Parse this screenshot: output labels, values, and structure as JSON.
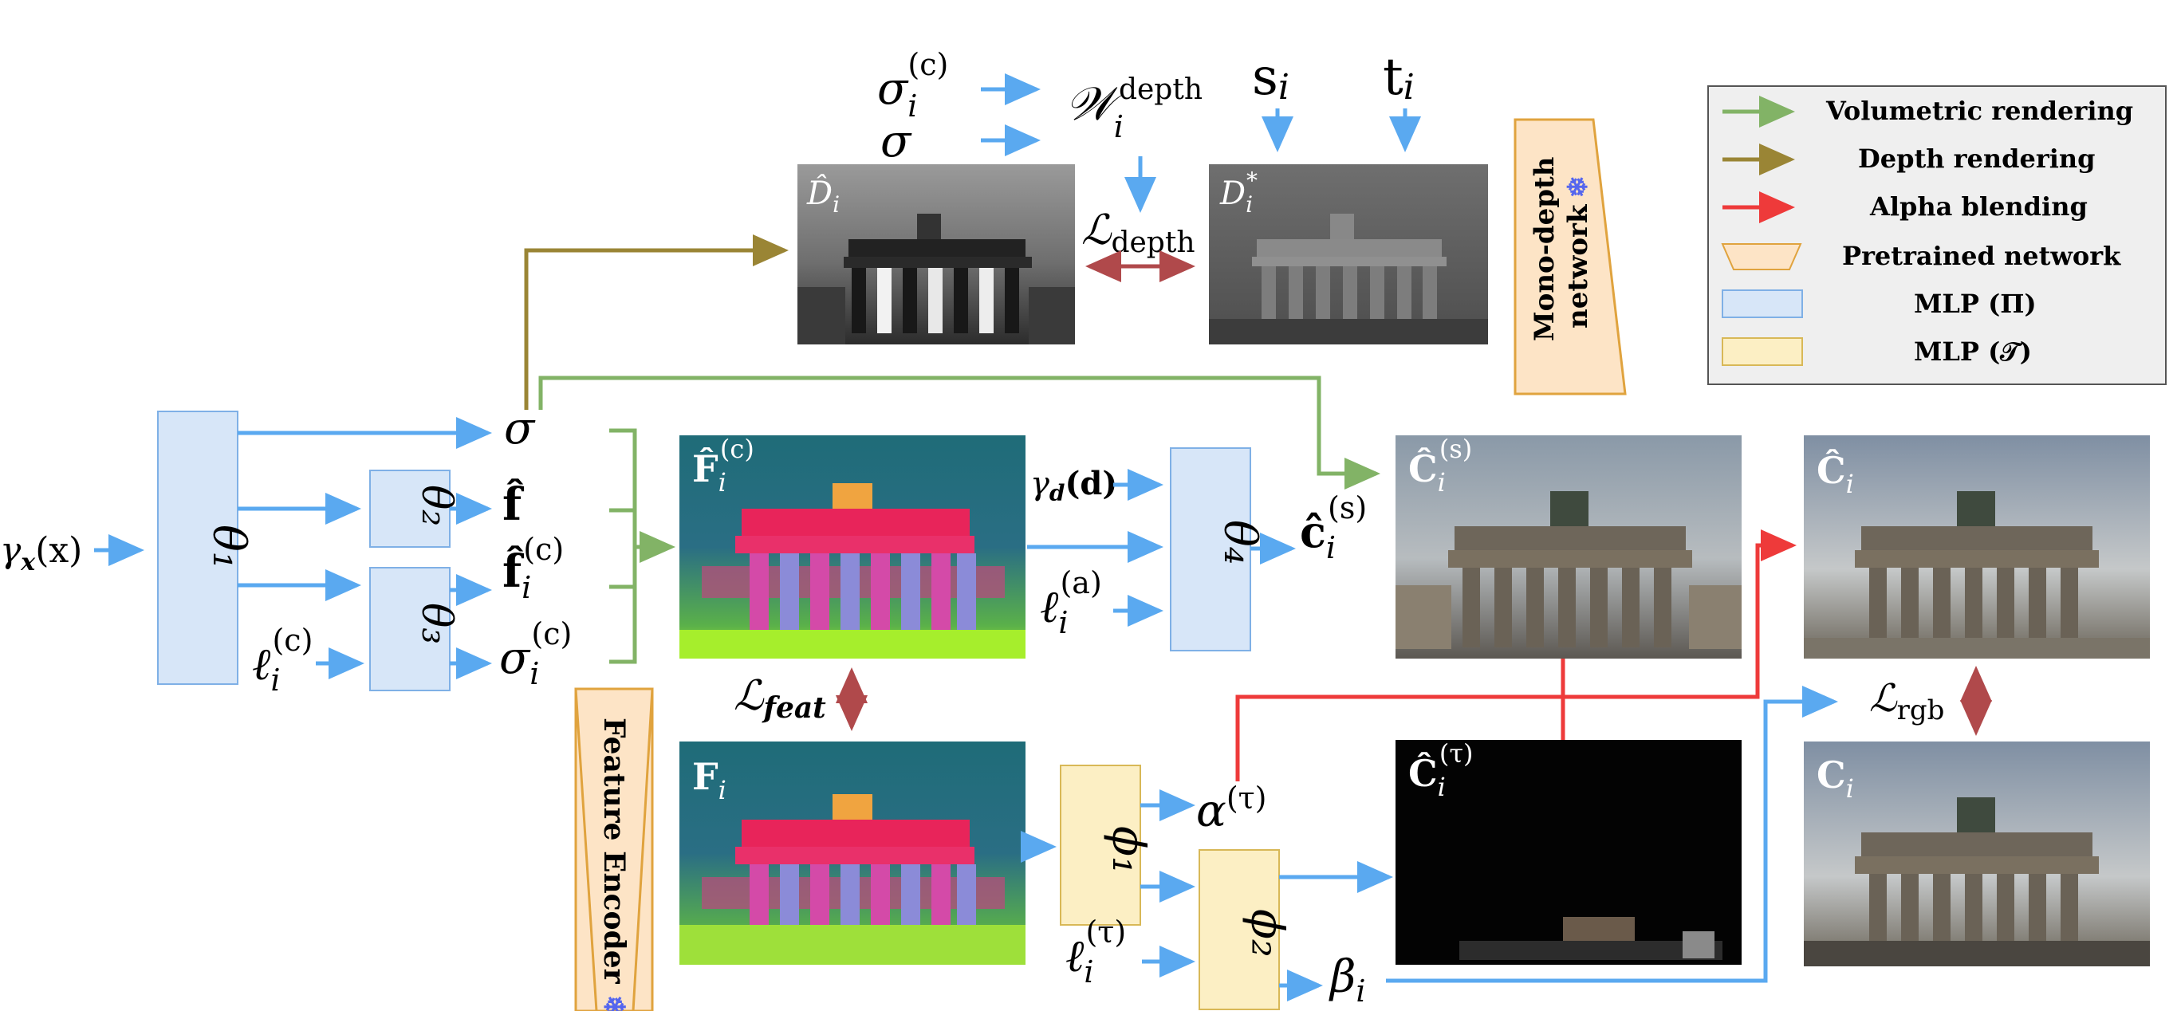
{
  "colors": {
    "volumetric": "#82b366",
    "depth": "#9a8535",
    "alpha": "#ee3a3a",
    "blue_arrow": "#5aa9f0",
    "loss_arrow": "#b0494b",
    "mlp_pi_fill": "#d7e6f8",
    "mlp_pi_stroke": "#7fb0e6",
    "mlp_t_fill": "#fcefc4",
    "mlp_t_stroke": "#d8b857",
    "pretrained_fill": "#fde4c6",
    "pretrained_stroke": "#e0a33e"
  },
  "legend": {
    "items": [
      {
        "label": "Volumetric rendering",
        "kind": "arrow",
        "color": "#82b366"
      },
      {
        "label": "Depth rendering",
        "kind": "arrow",
        "color": "#9a8535"
      },
      {
        "label": "Alpha blending",
        "kind": "arrow",
        "color": "#ee3a3a"
      },
      {
        "label": "Pretrained network",
        "kind": "trapezoid"
      },
      {
        "label": "MLP (Π)",
        "kind": "box-pi"
      },
      {
        "label": "MLP (𝒯)",
        "kind": "box-t"
      }
    ]
  },
  "inputs": {
    "gamma_x": "γ",
    "gamma_x_sub": "x",
    "gamma_x_arg": "(x)",
    "gamma_d": "γ",
    "gamma_d_sub": "d",
    "gamma_d_arg": "(d)",
    "l_c": "ℓ",
    "l_c_sub": "i",
    "l_c_sup": "(c)",
    "l_a": "ℓ",
    "l_a_sub": "i",
    "l_a_sup": "(a)",
    "l_t": "ℓ",
    "l_t_sub": "i",
    "l_t_sup": "(τ)"
  },
  "mlps": {
    "theta1": "θ₁",
    "theta2": "θ₂",
    "theta3": "θ₃",
    "theta4": "θ₄",
    "phi1": "ϕ₁",
    "phi2": "ϕ₂"
  },
  "outputs": {
    "sigma": "σ",
    "f_hat": "f̂",
    "f_hat_c": "f̂",
    "f_hat_c_sub": "i",
    "f_hat_c_sup": "(c)",
    "sigma_c": "σ",
    "sigma_c_sub": "i",
    "sigma_c_sup": "(c)",
    "c_hat_s": "ĉ",
    "c_hat_s_sub": "i",
    "c_hat_s_sup": "(s)",
    "alpha_t": "α",
    "alpha_t_sup": "(τ)",
    "beta": "β",
    "beta_sub": "i"
  },
  "depth_top": {
    "sigma_c": "σ",
    "sigma_c_sub": "i",
    "sigma_c_sup": "(c)",
    "sigma": "σ",
    "w": "𝒲",
    "w_sub": "i",
    "w_sup": "depth",
    "s": "s",
    "s_sub": "i",
    "t": "t",
    "t_sub": "i",
    "loss_depth": "ℒ",
    "loss_depth_sub": "depth"
  },
  "losses": {
    "feat": "ℒ",
    "feat_sub": "feat",
    "rgb": "ℒ",
    "rgb_sub": "rgb"
  },
  "images": {
    "d_hat": "D̂",
    "d_hat_sub": "i",
    "d_star": "D",
    "d_star_sub": "i",
    "d_star_sup": "*",
    "f_hat_c": "F̂",
    "f_hat_c_sub": "i",
    "f_hat_c_sup": "(c)",
    "f_i": "F",
    "f_i_sub": "i",
    "c_hat_s": "Ĉ",
    "c_hat_s_sub": "i",
    "c_hat_s_sup": "(s)",
    "c_hat_t": "Ĉ",
    "c_hat_t_sub": "i",
    "c_hat_t_sup": "(τ)",
    "c_hat": "Ĉ",
    "c_hat_sub": "i",
    "c_i": "C",
    "c_i_sub": "i"
  },
  "pretrained": {
    "mono_depth_line1": "Mono-depth",
    "mono_depth_line2": "network",
    "feature_encoder": "Feature Encoder",
    "frozen_icon": "snowflake-icon",
    "snow": "❄"
  }
}
